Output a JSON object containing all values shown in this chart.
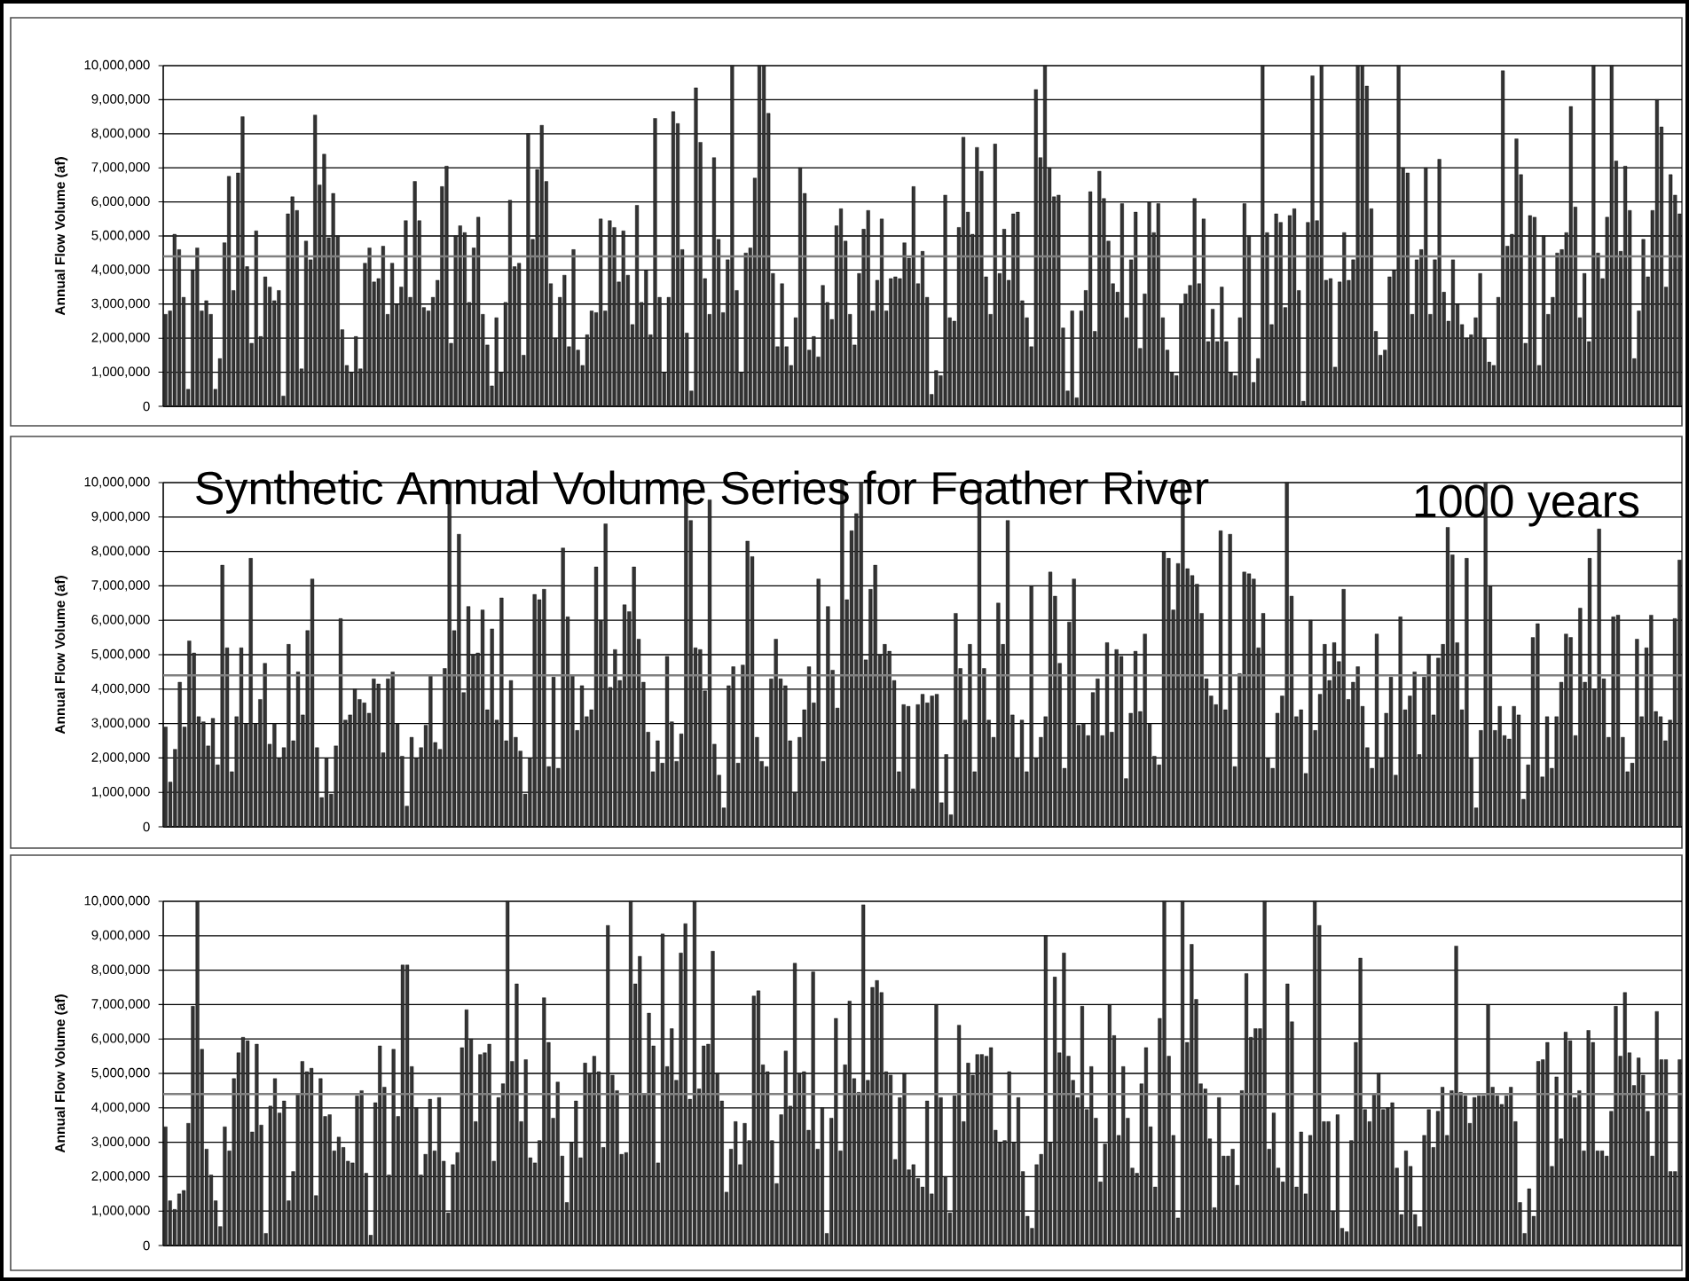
{
  "chart_data": [
    {
      "type": "bar",
      "ylabel": "Annual Flow Volume (af)",
      "color": "#333333",
      "grid": "y",
      "ylim": [
        0,
        10000000
      ],
      "yticks": [
        {
          "value": 0,
          "label": "0"
        },
        {
          "value": 1000000,
          "label": "1,000,000"
        },
        {
          "value": 2000000,
          "label": "2,000,000"
        },
        {
          "value": 3000000,
          "label": "3,000,000"
        },
        {
          "value": 4000000,
          "label": "4,000,000"
        },
        {
          "value": 5000000,
          "label": "5,000,000"
        },
        {
          "value": 6000000,
          "label": "6,000,000"
        },
        {
          "value": 7000000,
          "label": "7,000,000"
        },
        {
          "value": 8000000,
          "label": "8,000,000"
        },
        {
          "value": 9000000,
          "label": "9,000,000"
        },
        {
          "value": 10000000,
          "label": "10,000,000"
        }
      ],
      "ref_lines": [
        {
          "axis": "y",
          "value": 4400000,
          "color": "#808080"
        }
      ],
      "categories": [
        null,
        null,
        null,
        null,
        null,
        null,
        null,
        null,
        null,
        null,
        null,
        null,
        null,
        null,
        null,
        null,
        null,
        null,
        null,
        null,
        null,
        null,
        null,
        null,
        null,
        null,
        null,
        null,
        null,
        null,
        null,
        null,
        null,
        null,
        null,
        null,
        null,
        null,
        null,
        null,
        null,
        null,
        null,
        null,
        null,
        null,
        null,
        null,
        null,
        null,
        null,
        null,
        null,
        null,
        null,
        null,
        null,
        null,
        null,
        null,
        null,
        null,
        null,
        null,
        null,
        null,
        null,
        null,
        null,
        null,
        null,
        null,
        null,
        null,
        null,
        null,
        null,
        null,
        null,
        null,
        null,
        null,
        null,
        null,
        null,
        null,
        null,
        null,
        null,
        null,
        null,
        null,
        null,
        null,
        null,
        null,
        null,
        null,
        null,
        null,
        null,
        null,
        null,
        null,
        null,
        null,
        null,
        null,
        null,
        null,
        null,
        null,
        null,
        null,
        null,
        null,
        null,
        null,
        null,
        null,
        null,
        null,
        null,
        null,
        null,
        null,
        null,
        null,
        null,
        null,
        null,
        null,
        null,
        null,
        null,
        null,
        null,
        null,
        null,
        null,
        null,
        null,
        null,
        null,
        null,
        null,
        null,
        null,
        null,
        null,
        null,
        null,
        null,
        null,
        null,
        null,
        null,
        null,
        null,
        null,
        null,
        null,
        null,
        null,
        null,
        null,
        null,
        null,
        null,
        null,
        null,
        null,
        null,
        null,
        null,
        null,
        null,
        null,
        null,
        null,
        null,
        null,
        null,
        null,
        null,
        null,
        null,
        null,
        null,
        null,
        null,
        null,
        null,
        null,
        null,
        null,
        null,
        null,
        null,
        null,
        null,
        null,
        null,
        null,
        null,
        null,
        null,
        null,
        null,
        null,
        null,
        null,
        null,
        null,
        null,
        null,
        null,
        null,
        null,
        null,
        null,
        null,
        null,
        null,
        null,
        null,
        null,
        null,
        null,
        null,
        null,
        null,
        null,
        null,
        null,
        null,
        null,
        null,
        null,
        null,
        null,
        null,
        null,
        null,
        null,
        null,
        null,
        null,
        null,
        null,
        null,
        null,
        null,
        null,
        null,
        null,
        null,
        null,
        null,
        null,
        null,
        null,
        null,
        null,
        null,
        null,
        null,
        null,
        null,
        null,
        null,
        null,
        null,
        null,
        null,
        null,
        null,
        null,
        null,
        null,
        null,
        null,
        null,
        null,
        null,
        null,
        null,
        null,
        null,
        null,
        null,
        null,
        null,
        null,
        null,
        null,
        null,
        null,
        null,
        null,
        null,
        null,
        null,
        null,
        null,
        null,
        null,
        null,
        null,
        null,
        null,
        null,
        null,
        null,
        null,
        null,
        null,
        null,
        null,
        null,
        null,
        null,
        null,
        null,
        null,
        null,
        null,
        null,
        null,
        null,
        null,
        null,
        null,
        null,
        null
      ],
      "values": [
        2700000.0,
        2800000.0,
        5050000.0,
        4600000.0,
        3200000.0,
        500000.0,
        4000000.0,
        4650000.0,
        2800000.0,
        3100000.0,
        2700000.0,
        500000.0,
        1400000.0,
        4800000.0,
        6750000.0,
        3400000.0,
        6850000.0,
        8500000.0,
        4100000.0,
        1850000.0,
        5150000.0,
        2050000.0,
        3800000.0,
        3500000.0,
        3100000.0,
        3400000.0,
        300000.0,
        5650000.0,
        6150000.0,
        5750000.0,
        1100000.0,
        4850000.0,
        4300000.0,
        8550000.0,
        6500000.0,
        7400000.0,
        4950000.0,
        6250000.0,
        5000000.0,
        2250000.0,
        1200000.0,
        1000000.0,
        2050000.0,
        1100000.0,
        4200000.0,
        4650000.0,
        3650000.0,
        3750000.0,
        4700000.0,
        2700000.0,
        4200000.0,
        3000000.0,
        3500000.0,
        5450000.0,
        3200000.0,
        6600000.0,
        5450000.0,
        2900000.0,
        2800000.0,
        3200000.0,
        3700000.0,
        6450000.0,
        7050000.0,
        1850000.0,
        5000000.0,
        5300000.0,
        5100000.0,
        3050000.0,
        4650000.0,
        5550000.0,
        2700000.0,
        1800000.0,
        600000.0,
        2600000.0,
        1000000.0,
        3050000.0,
        6050000.0,
        4100000.0,
        4200000.0,
        1500000.0,
        8000000.0,
        4900000.0,
        6950000.0,
        8250000.0,
        6600000.0,
        3600000.0,
        2000000.0,
        3200000.0,
        3850000.0,
        1750000.0,
        4600000.0,
        1650000.0,
        1200000.0,
        2100000.0,
        2800000.0,
        2750000.0,
        5500000.0,
        2800000.0,
        5450000.0,
        5250000.0,
        3650000.0,
        5150000.0,
        3850000.0,
        2400000.0,
        5900000.0,
        3050000.0,
        4000000.0,
        2100000.0,
        8450000.0,
        3200000.0,
        1000000.0,
        3200000.0,
        8650000.0,
        8300000.0,
        4600000.0,
        2150000.0,
        450000.0,
        9350000.0,
        7750000.0,
        3750000.0,
        2700000.0,
        7300000.0,
        4900000.0,
        2750000.0,
        4300000.0,
        10000000.0,
        3400000.0,
        1000000.0,
        4500000.0,
        4650000.0,
        6700000.0,
        10000000.0,
        10000000.0,
        8600000.0,
        3900000.0,
        1750000.0,
        3600000.0,
        1750000.0,
        1200000.0,
        2600000.0,
        7000000.0,
        6250000.0,
        1650000.0,
        2050000.0,
        1450000.0,
        3550000.0,
        3050000.0,
        2550000.0,
        5300000.0,
        5800000.0,
        4850000.0,
        2700000.0,
        1800000.0,
        3900000.0,
        5200000.0,
        5750000.0,
        2800000.0,
        3700000.0,
        5500000.0,
        2800000.0,
        3750000.0,
        3800000.0,
        3750000.0,
        4800000.0,
        4350000.0,
        6450000.0,
        3600000.0,
        4550000.0,
        3200000.0,
        350000.0,
        1050000.0,
        900000.0,
        6200000.0,
        2600000.0,
        2500000.0,
        5250000.0,
        7900000.0,
        5700000.0,
        5050000.0,
        7600000.0,
        6900000.0,
        3800000.0,
        2700000.0,
        7700000.0,
        3900000.0,
        5200000.0,
        3700000.0,
        5650000.0,
        5700000.0,
        3100000.0,
        2600000.0,
        1750000.0,
        9300000.0,
        7300000.0,
        10000000.0,
        7000000.0,
        6150000.0,
        6200000.0,
        2300000.0,
        450000.0,
        2800000.0,
        250000.0,
        2800000.0,
        3400000.0,
        6300000.0,
        2200000.0,
        6900000.0,
        6100000.0,
        4850000.0,
        3600000.0,
        3350000.0,
        5950000.0,
        2600000.0,
        4300000.0,
        5700000.0,
        1700000.0,
        3300000.0,
        6000000.0,
        5100000.0,
        5950000.0,
        2600000.0,
        1650000.0,
        1000000.0,
        900000.0,
        3000000.0,
        3300000.0,
        3550000.0,
        6100000.0,
        3600000.0,
        5500000.0,
        1900000.0,
        2850000.0,
        1900000.0,
        3500000.0,
        1900000.0,
        1000000.0,
        900000.0,
        2600000.0,
        5950000.0,
        5000000.0,
        700000.0,
        1400000.0,
        10000000.0,
        5100000.0,
        2400000.0,
        5650000.0,
        5400000.0,
        2900000.0,
        5600000.0,
        5800000.0,
        3400000.0,
        150000.0,
        5400000.0,
        9700000.0,
        5450000.0,
        10000000.0,
        3700000.0,
        3750000.0,
        1150000.0,
        3650000.0,
        5100000.0,
        3700000.0,
        4300000.0,
        10000000.0,
        10000000.0,
        9400000.0,
        5800000.0,
        2200000.0,
        1500000.0,
        1650000.0,
        3800000.0,
        4000000.0,
        10000000.0,
        7000000.0,
        6850000.0,
        2700000.0,
        4300000.0,
        4600000.0,
        7000000.0,
        2700000.0,
        4300000.0,
        7250000.0,
        3350000.0,
        2500000.0,
        4300000.0,
        3000000.0,
        2400000.0,
        2000000.0,
        2100000.0,
        2600000.0,
        3900000.0,
        2000000.0,
        1300000.0,
        1200000.0,
        3200000.0,
        9850000.0,
        4700000.0,
        5050000.0,
        7850000.0,
        6800000.0,
        1850000.0,
        5600000.0,
        5550000.0,
        1200000.0,
        5000000.0,
        2700000.0,
        3200000.0,
        4500000.0,
        4600000.0,
        5100000.0,
        8800000.0,
        5850000.0,
        2600000.0,
        3900000.0,
        1900000.0,
        10000000.0,
        4500000.0,
        3750000.0,
        5550000.0,
        10000000.0,
        7200000.0,
        4550000.0,
        7050000.0,
        5750000.0,
        1400000.0,
        2800000.0,
        4900000.0,
        3800000.0,
        5750000.0,
        9000000.0,
        8200000.0,
        3500000.0,
        6800000.0,
        6200000.0,
        5650000.0
      ]
    },
    {
      "type": "bar",
      "title": "Synthetic Annual Volume Series for Feather River",
      "subtitle": "1000 years",
      "ylabel": "Annual Flow Volume (af)",
      "color": "#333333",
      "grid": "y",
      "ylim": [
        0,
        10000000
      ],
      "yticks": [
        {
          "value": 0,
          "label": "0"
        },
        {
          "value": 1000000,
          "label": "1,000,000"
        },
        {
          "value": 2000000,
          "label": "2,000,000"
        },
        {
          "value": 3000000,
          "label": "3,000,000"
        },
        {
          "value": 4000000,
          "label": "4,000,000"
        },
        {
          "value": 5000000,
          "label": "5,000,000"
        },
        {
          "value": 6000000,
          "label": "6,000,000"
        },
        {
          "value": 7000000,
          "label": "7,000,000"
        },
        {
          "value": 8000000,
          "label": "8,000,000"
        },
        {
          "value": 9000000,
          "label": "9,000,000"
        },
        {
          "value": 10000000,
          "label": "10,000,000"
        }
      ],
      "ref_lines": [
        {
          "axis": "y",
          "value": 4400000,
          "color": "#808080"
        }
      ],
      "categories": [
        null,
        null,
        null,
        null,
        null,
        null,
        null,
        null,
        null,
        null,
        null,
        null,
        null,
        null,
        null,
        null,
        null,
        null,
        null,
        null,
        null,
        null,
        null,
        null,
        null,
        null,
        null,
        null,
        null,
        null,
        null,
        null,
        null,
        null,
        null,
        null,
        null,
        null,
        null,
        null,
        null,
        null,
        null,
        null,
        null,
        null,
        null,
        null,
        null,
        null,
        null,
        null,
        null,
        null,
        null,
        null,
        null,
        null,
        null,
        null,
        null,
        null,
        null,
        null,
        null,
        null,
        null,
        null,
        null,
        null,
        null,
        null,
        null,
        null,
        null,
        null,
        null,
        null,
        null,
        null,
        null,
        null,
        null,
        null,
        null,
        null,
        null,
        null,
        null,
        null,
        null,
        null,
        null,
        null,
        null,
        null,
        null,
        null,
        null,
        null,
        null,
        null,
        null,
        null,
        null,
        null,
        null,
        null,
        null,
        null,
        null,
        null,
        null,
        null,
        null,
        null,
        null,
        null,
        null,
        null,
        null,
        null,
        null,
        null,
        null,
        null,
        null,
        null,
        null,
        null,
        null,
        null,
        null,
        null,
        null,
        null,
        null,
        null,
        null,
        null,
        null,
        null,
        null,
        null,
        null,
        null,
        null,
        null,
        null,
        null,
        null,
        null,
        null,
        null,
        null,
        null,
        null,
        null,
        null,
        null,
        null,
        null,
        null,
        null,
        null,
        null,
        null,
        null,
        null,
        null,
        null,
        null,
        null,
        null,
        null,
        null,
        null,
        null,
        null,
        null,
        null,
        null,
        null,
        null,
        null,
        null,
        null,
        null,
        null,
        null,
        null,
        null,
        null,
        null,
        null,
        null,
        null,
        null,
        null,
        null,
        null,
        null,
        null,
        null,
        null,
        null,
        null,
        null,
        null,
        null,
        null,
        null,
        null,
        null,
        null,
        null,
        null,
        null,
        null,
        null,
        null,
        null,
        null,
        null,
        null,
        null,
        null,
        null,
        null,
        null,
        null,
        null,
        null,
        null,
        null,
        null,
        null,
        null,
        null,
        null,
        null,
        null,
        null,
        null,
        null,
        null,
        null,
        null,
        null,
        null,
        null,
        null,
        null,
        null,
        null,
        null,
        null,
        null,
        null,
        null,
        null,
        null,
        null,
        null,
        null,
        null,
        null,
        null,
        null,
        null,
        null,
        null,
        null,
        null,
        null,
        null,
        null,
        null,
        null,
        null,
        null,
        null,
        null,
        null,
        null,
        null,
        null,
        null,
        null,
        null,
        null,
        null,
        null,
        null,
        null,
        null,
        null,
        null,
        null,
        null,
        null,
        null,
        null,
        null,
        null,
        null,
        null,
        null,
        null,
        null,
        null,
        null,
        null,
        null,
        null,
        null,
        null,
        null,
        null,
        null,
        null
      ],
      "values": [
        2900000.0,
        1300000.0,
        2250000.0,
        4200000.0,
        2900000.0,
        5400000.0,
        5050000.0,
        3200000.0,
        3050000.0,
        2350000.0,
        3150000.0,
        1800000.0,
        7600000.0,
        5200000.0,
        1600000.0,
        3200000.0,
        5200000.0,
        3000000.0,
        7800000.0,
        3000000.0,
        3700000.0,
        4750000.0,
        2400000.0,
        3000000.0,
        2000000.0,
        2300000.0,
        5300000.0,
        2500000.0,
        4500000.0,
        3250000.0,
        5700000.0,
        7200000.0,
        2300000.0,
        850000.0,
        2000000.0,
        950000.0,
        2350000.0,
        6050000.0,
        3100000.0,
        3250000.0,
        4000000.0,
        3700000.0,
        3600000.0,
        3300000.0,
        4300000.0,
        4150000.0,
        2150000.0,
        4300000.0,
        4500000.0,
        3000000.0,
        2050000.0,
        600000.0,
        2600000.0,
        2000000.0,
        2300000.0,
        2950000.0,
        4400000.0,
        2450000.0,
        2250000.0,
        4600000.0,
        10000000.0,
        5700000.0,
        8500000.0,
        3900000.0,
        6400000.0,
        5000000.0,
        5050000.0,
        6300000.0,
        3400000.0,
        5750000.0,
        3100000.0,
        6650000.0,
        2500000.0,
        4250000.0,
        2600000.0,
        2200000.0,
        950000.0,
        2000000.0,
        6750000.0,
        6600000.0,
        6900000.0,
        1750000.0,
        4350000.0,
        1700000.0,
        8100000.0,
        6100000.0,
        4400000.0,
        2800000.0,
        4100000.0,
        3200000.0,
        3400000.0,
        7550000.0,
        6000000.0,
        8800000.0,
        4050000.0,
        5150000.0,
        4250000.0,
        6450000.0,
        6250000.0,
        7550000.0,
        5450000.0,
        4200000.0,
        2750000.0,
        1600000.0,
        2500000.0,
        1850000.0,
        4950000.0,
        3050000.0,
        1900000.0,
        2700000.0,
        10000000.0,
        8900000.0,
        5200000.0,
        5150000.0,
        3950000.0,
        9500000.0,
        2400000.0,
        1500000.0,
        550000.0,
        4100000.0,
        4650000.0,
        1850000.0,
        4700000.0,
        8300000.0,
        7850000.0,
        2600000.0,
        1900000.0,
        1750000.0,
        4300000.0,
        5450000.0,
        4300000.0,
        4100000.0,
        2500000.0,
        1000000.0,
        2600000.0,
        3400000.0,
        4650000.0,
        3600000.0,
        7200000.0,
        1900000.0,
        6400000.0,
        4550000.0,
        3450000.0,
        10000000.0,
        6600000.0,
        8600000.0,
        9100000.0,
        10000000.0,
        4850000.0,
        6900000.0,
        7600000.0,
        5000000.0,
        5300000.0,
        5100000.0,
        4250000.0,
        1600000.0,
        3550000.0,
        3500000.0,
        1100000.0,
        3550000.0,
        3850000.0,
        3600000.0,
        3800000.0,
        3850000.0,
        700000.0,
        2100000.0,
        350000.0,
        6200000.0,
        4600000.0,
        3100000.0,
        5300000.0,
        1600000.0,
        10000000.0,
        4600000.0,
        3100000.0,
        2600000.0,
        6500000.0,
        5300000.0,
        8900000.0,
        3250000.0,
        2000000.0,
        3100000.0,
        1600000.0,
        7000000.0,
        2000000.0,
        2600000.0,
        3200000.0,
        7400000.0,
        6700000.0,
        4750000.0,
        1700000.0,
        5950000.0,
        7200000.0,
        2950000.0,
        3000000.0,
        2650000.0,
        3900000.0,
        4300000.0,
        2650000.0,
        5350000.0,
        2750000.0,
        5150000.0,
        4950000.0,
        1400000.0,
        3300000.0,
        5100000.0,
        3350000.0,
        5600000.0,
        3000000.0,
        2050000.0,
        1800000.0,
        8000000.0,
        7800000.0,
        6300000.0,
        7650000.0,
        10000000.0,
        7500000.0,
        7300000.0,
        7050000.0,
        6200000.0,
        4300000.0,
        3800000.0,
        3550000.0,
        8600000.0,
        3400000.0,
        8500000.0,
        1750000.0,
        4450000.0,
        7400000.0,
        7350000.0,
        7200000.0,
        5200000.0,
        6200000.0,
        2000000.0,
        1700000.0,
        3300000.0,
        3800000.0,
        10000000.0,
        6700000.0,
        3200000.0,
        3400000.0,
        1550000.0,
        6000000.0,
        2800000.0,
        3850000.0,
        5300000.0,
        4250000.0,
        5350000.0,
        4800000.0,
        6900000.0,
        3700000.0,
        4200000.0,
        4650000.0,
        3500000.0,
        2300000.0,
        1700000.0,
        5600000.0,
        2000000.0,
        3300000.0,
        4350000.0,
        1500000.0,
        6100000.0,
        3400000.0,
        3800000.0,
        4500000.0,
        2100000.0,
        4350000.0,
        5000000.0,
        3250000.0,
        4900000.0,
        5300000.0,
        8700000.0,
        7900000.0,
        5350000.0,
        3400000.0,
        7800000.0,
        2000000.0,
        550000.0,
        2800000.0,
        10000000.0,
        7000000.0,
        2800000.0,
        3500000.0,
        2650000.0,
        2550000.0,
        3500000.0,
        3250000.0,
        800000.0,
        1800000.0,
        5500000.0,
        5900000.0,
        1450000.0,
        3200000.0,
        1700000.0,
        3200000.0,
        4200000.0,
        5600000.0,
        5500000.0,
        2650000.0,
        6350000.0,
        4200000.0,
        7800000.0,
        4000000.0,
        8650000.0,
        4300000.0,
        2600000.0,
        6100000.0,
        6150000.0,
        2600000.0,
        1600000.0,
        1850000.0,
        5450000.0,
        3200000.0,
        5200000.0,
        6150000.0,
        3350000.0,
        3200000.0,
        2500000.0,
        3100000.0,
        6050000.0,
        7750000.0
      ]
    },
    {
      "type": "bar",
      "ylabel": "Annual Flow Volume (af)",
      "color": "#333333",
      "grid": "y",
      "ylim": [
        0,
        10000000
      ],
      "yticks": [
        {
          "value": 0,
          "label": "0"
        },
        {
          "value": 1000000,
          "label": "1,000,000"
        },
        {
          "value": 2000000,
          "label": "2,000,000"
        },
        {
          "value": 3000000,
          "label": "3,000,000"
        },
        {
          "value": 4000000,
          "label": "4,000,000"
        },
        {
          "value": 5000000,
          "label": "5,000,000"
        },
        {
          "value": 6000000,
          "label": "6,000,000"
        },
        {
          "value": 7000000,
          "label": "7,000,000"
        },
        {
          "value": 8000000,
          "label": "8,000,000"
        },
        {
          "value": 9000000,
          "label": "9,000,000"
        },
        {
          "value": 10000000,
          "label": "10,000,000"
        }
      ],
      "ref_lines": [
        {
          "axis": "y",
          "value": 4400000,
          "color": "#808080"
        }
      ],
      "categories": [
        null,
        null,
        null,
        null,
        null,
        null,
        null,
        null,
        null,
        null,
        null,
        null,
        null,
        null,
        null,
        null,
        null,
        null,
        null,
        null,
        null,
        null,
        null,
        null,
        null,
        null,
        null,
        null,
        null,
        null,
        null,
        null,
        null,
        null,
        null,
        null,
        null,
        null,
        null,
        null,
        null,
        null,
        null,
        null,
        null,
        null,
        null,
        null,
        null,
        null,
        null,
        null,
        null,
        null,
        null,
        null,
        null,
        null,
        null,
        null,
        null,
        null,
        null,
        null,
        null,
        null,
        null,
        null,
        null,
        null,
        null,
        null,
        null,
        null,
        null,
        null,
        null,
        null,
        null,
        null,
        null,
        null,
        null,
        null,
        null,
        null,
        null,
        null,
        null,
        null,
        null,
        null,
        null,
        null,
        null,
        null,
        null,
        null,
        null,
        null,
        null,
        null,
        null,
        null,
        null,
        null,
        null,
        null,
        null,
        null,
        null,
        null,
        null,
        null,
        null,
        null,
        null,
        null,
        null,
        null,
        null,
        null,
        null,
        null,
        null,
        null,
        null,
        null,
        null,
        null,
        null,
        null,
        null,
        null,
        null,
        null,
        null,
        null,
        null,
        null,
        null,
        null,
        null,
        null,
        null,
        null,
        null,
        null,
        null,
        null,
        null,
        null,
        null,
        null,
        null,
        null,
        null,
        null,
        null,
        null,
        null,
        null,
        null,
        null,
        null,
        null,
        null,
        null,
        null,
        null,
        null,
        null,
        null,
        null,
        null,
        null,
        null,
        null,
        null,
        null,
        null,
        null,
        null,
        null,
        null,
        null,
        null,
        null,
        null,
        null,
        null,
        null,
        null,
        null,
        null,
        null,
        null,
        null,
        null,
        null,
        null,
        null,
        null,
        null,
        null,
        null,
        null,
        null,
        null,
        null,
        null,
        null,
        null,
        null,
        null,
        null,
        null,
        null,
        null,
        null,
        null,
        null,
        null,
        null,
        null,
        null,
        null,
        null,
        null,
        null,
        null,
        null,
        null,
        null,
        null,
        null,
        null,
        null,
        null,
        null,
        null,
        null,
        null,
        null,
        null,
        null,
        null,
        null,
        null,
        null,
        null,
        null,
        null,
        null,
        null,
        null,
        null,
        null,
        null,
        null,
        null,
        null,
        null,
        null,
        null,
        null,
        null,
        null,
        null,
        null,
        null,
        null,
        null,
        null,
        null,
        null,
        null,
        null,
        null,
        null,
        null,
        null,
        null,
        null,
        null,
        null,
        null,
        null,
        null,
        null,
        null,
        null,
        null,
        null,
        null,
        null,
        null,
        null,
        null,
        null,
        null,
        null,
        null,
        null,
        null,
        null,
        null,
        null,
        null,
        null,
        null,
        null,
        null,
        null,
        null,
        null,
        null,
        null,
        null,
        null,
        null,
        null,
        null,
        null,
        null,
        null,
        null,
        null,
        null,
        null,
        null,
        null,
        null
      ],
      "values": [
        3450000.0,
        1300000.0,
        1050000.0,
        1500000.0,
        1600000.0,
        3550000.0,
        6950000.0,
        10000000.0,
        5700000.0,
        2800000.0,
        2050000.0,
        1300000.0,
        550000.0,
        3450000.0,
        2750000.0,
        4850000.0,
        5600000.0,
        6050000.0,
        5950000.0,
        3300000.0,
        5850000.0,
        3500000.0,
        350000.0,
        4050000.0,
        4850000.0,
        3850000.0,
        4200000.0,
        1300000.0,
        2150000.0,
        4400000.0,
        5350000.0,
        5050000.0,
        5150000.0,
        1450000.0,
        4850000.0,
        3750000.0,
        3800000.0,
        2750000.0,
        3150000.0,
        2850000.0,
        2450000.0,
        2400000.0,
        4350000.0,
        4500000.0,
        2100000.0,
        300000.0,
        4150000.0,
        5800000.0,
        4600000.0,
        2050000.0,
        5700000.0,
        3750000.0,
        8150000.0,
        8150000.0,
        5200000.0,
        4000000.0,
        2050000.0,
        2650000.0,
        4250000.0,
        2750000.0,
        4300000.0,
        2450000.0,
        950000.0,
        2350000.0,
        2700000.0,
        5750000.0,
        6850000.0,
        6000000.0,
        3600000.0,
        5550000.0,
        5600000.0,
        5850000.0,
        2450000.0,
        4300000.0,
        4700000.0,
        10000000.0,
        5350000.0,
        7600000.0,
        3600000.0,
        5400000.0,
        2550000.0,
        2400000.0,
        3050000.0,
        7200000.0,
        5900000.0,
        3700000.0,
        4750000.0,
        2600000.0,
        1250000.0,
        3000000.0,
        4200000.0,
        2550000.0,
        5300000.0,
        5000000.0,
        5500000.0,
        5050000.0,
        2850000.0,
        9300000.0,
        4950000.0,
        4500000.0,
        2650000.0,
        2700000.0,
        10000000.0,
        7600000.0,
        8400000.0,
        4400000.0,
        6750000.0,
        5800000.0,
        2400000.0,
        9050000.0,
        5200000.0,
        6300000.0,
        4800000.0,
        8500000.0,
        9350000.0,
        4250000.0,
        10000000.0,
        4550000.0,
        5800000.0,
        5850000.0,
        8550000.0,
        5000000.0,
        4200000.0,
        1550000.0,
        2800000.0,
        3600000.0,
        2350000.0,
        3550000.0,
        3050000.0,
        7250000.0,
        7400000.0,
        5250000.0,
        5050000.0,
        3050000.0,
        1800000.0,
        3800000.0,
        5650000.0,
        4050000.0,
        8200000.0,
        5000000.0,
        5050000.0,
        3350000.0,
        7950000.0,
        2800000.0,
        4000000.0,
        350000.0,
        3700000.0,
        6600000.0,
        2750000.0,
        5250000.0,
        7100000.0,
        4850000.0,
        4450000.0,
        9900000.0,
        4800000.0,
        7500000.0,
        7700000.0,
        7350000.0,
        5050000.0,
        4950000.0,
        2500000.0,
        4300000.0,
        5000000.0,
        2200000.0,
        2350000.0,
        1950000.0,
        1700000.0,
        4200000.0,
        1500000.0,
        7000000.0,
        4300000.0,
        2000000.0,
        950000.0,
        4350000.0,
        6400000.0,
        3600000.0,
        5300000.0,
        4950000.0,
        5550000.0,
        5550000.0,
        5500000.0,
        5750000.0,
        3350000.0,
        3000000.0,
        3050000.0,
        5050000.0,
        3000000.0,
        4300000.0,
        2150000.0,
        850000.0,
        500000.0,
        2350000.0,
        2650000.0,
        9000000.0,
        3000000.0,
        7800000.0,
        5600000.0,
        8500000.0,
        5500000.0,
        4800000.0,
        4300000.0,
        6950000.0,
        3950000.0,
        5200000.0,
        3700000.0,
        1850000.0,
        2950000.0,
        7000000.0,
        6100000.0,
        3200000.0,
        5200000.0,
        3700000.0,
        2250000.0,
        2100000.0,
        4700000.0,
        5750000.0,
        3450000.0,
        1700000.0,
        6600000.0,
        10000000.0,
        5500000.0,
        3200000.0,
        800000.0,
        10000000.0,
        5900000.0,
        8750000.0,
        7150000.0,
        4700000.0,
        4550000.0,
        3100000.0,
        1100000.0,
        4300000.0,
        2600000.0,
        2600000.0,
        2800000.0,
        1750000.0,
        4500000.0,
        7900000.0,
        6050000.0,
        6300000.0,
        6300000.0,
        10000000.0,
        2800000.0,
        3850000.0,
        2250000.0,
        1850000.0,
        7600000.0,
        6500000.0,
        1700000.0,
        3300000.0,
        1500000.0,
        3200000.0,
        10000000.0,
        9300000.0,
        3600000.0,
        3600000.0,
        1000000.0,
        3800000.0,
        500000.0,
        400000.0,
        3050000.0,
        5900000.0,
        8350000.0,
        3950000.0,
        3600000.0,
        4400000.0,
        5000000.0,
        3950000.0,
        4000000.0,
        4150000.0,
        2250000.0,
        900000.0,
        2750000.0,
        2300000.0,
        900000.0,
        550000.0,
        3200000.0,
        3950000.0,
        2850000.0,
        3900000.0,
        4600000.0,
        3200000.0,
        4500000.0,
        8700000.0,
        4450000.0,
        4350000.0,
        3550000.0,
        4300000.0,
        4350000.0,
        4350000.0,
        7000000.0,
        4600000.0,
        4350000.0,
        4100000.0,
        4350000.0,
        4600000.0,
        3600000.0,
        1250000.0,
        350000.0,
        1650000.0,
        850000.0,
        5350000.0,
        5400000.0,
        5900000.0,
        2300000.0,
        4900000.0,
        3100000.0,
        6200000.0,
        5950000.0,
        4300000.0,
        4500000.0,
        2750000.0,
        6250000.0,
        5900000.0,
        2750000.0,
        2750000.0,
        2600000.0,
        3900000.0,
        6950000.0,
        5500000.0,
        7350000.0,
        5600000.0,
        4650000.0,
        5450000.0,
        4950000.0,
        3900000.0,
        2600000.0,
        6800000.0,
        5400000.0,
        5400000.0,
        2150000.0,
        2150000.0,
        5400000.0
      ]
    }
  ]
}
